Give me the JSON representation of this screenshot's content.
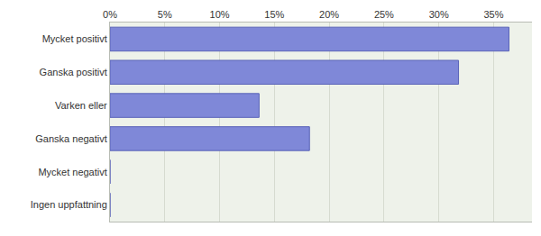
{
  "chart_data": {
    "type": "bar",
    "orientation": "horizontal",
    "categories": [
      "Mycket positivt",
      "Ganska positivt",
      "Varken eller",
      "Ganska negativt",
      "Mycket negativt",
      "Ingen uppfattning"
    ],
    "values": [
      36.4,
      31.8,
      13.6,
      18.2,
      0,
      0
    ],
    "color": "#7f88d8",
    "xlim": [
      0,
      38.5
    ],
    "xticks": [
      {
        "value": 0,
        "label": "0%"
      },
      {
        "value": 5,
        "label": "5%"
      },
      {
        "value": 10,
        "label": "10%"
      },
      {
        "value": 15,
        "label": "15%"
      },
      {
        "value": 20,
        "label": "20%"
      },
      {
        "value": 25,
        "label": "25%"
      },
      {
        "value": 30,
        "label": "30%"
      },
      {
        "value": 35,
        "label": "35%"
      }
    ],
    "grid": true
  }
}
